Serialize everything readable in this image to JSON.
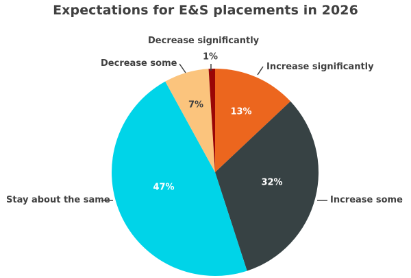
{
  "chart_data": {
    "type": "pie",
    "title": "Expectations for E&S placements in 2026",
    "start_angle": "12 o'clock, clockwise",
    "slices": [
      {
        "label": "Increase significantly",
        "value": 13,
        "display": "13%",
        "color": "#EC661E",
        "text_color": "#FFFFFF"
      },
      {
        "label": "Increase some",
        "value": 32,
        "display": "32%",
        "color": "#374244",
        "text_color": "#FFFFFF"
      },
      {
        "label": "Stay about the same",
        "value": 47,
        "display": "47%",
        "color": "#00D4E8",
        "text_color": "#FFFFFF"
      },
      {
        "label": "Decrease some",
        "value": 7,
        "display": "7%",
        "color": "#FBC47D",
        "text_color": "#404040"
      },
      {
        "label": "Decrease significantly",
        "value": 1,
        "display": "1%",
        "color": "#9A0606",
        "text_color": "#404040"
      }
    ],
    "categories": [
      "Increase significantly",
      "Increase some",
      "Stay about the same",
      "Decrease some",
      "Decrease significantly"
    ],
    "values": [
      13,
      32,
      47,
      7,
      1
    ],
    "legend": "none (data labels with leader lines)"
  },
  "title": "Expectations for E&S placements in 2026",
  "labels": {
    "increase_significantly": "Increase significantly",
    "increase_some": "Increase some",
    "stay_same": "Stay about the same",
    "decrease_some": "Decrease some",
    "decrease_significantly": "Decrease significantly"
  },
  "percents": {
    "increase_significantly": "13%",
    "increase_some": "32%",
    "stay_same": "47%",
    "decrease_some": "7%",
    "decrease_significantly": "1%"
  }
}
